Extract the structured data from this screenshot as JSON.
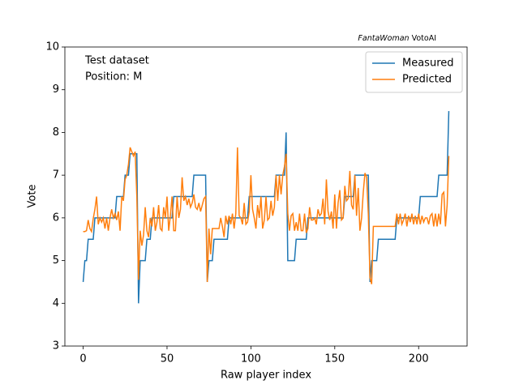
{
  "chart_data": {
    "type": "line",
    "source": {
      "italic": "FantaWoman",
      "text": "VotoAI"
    },
    "annotations": [
      "Test dataset",
      "Position: M"
    ],
    "xlabel": "Raw player index",
    "ylabel": "Vote",
    "xlim": [
      -10.9,
      228.9
    ],
    "xticks": [
      0,
      50,
      100,
      150,
      200
    ],
    "ylim": [
      3,
      10
    ],
    "yticks": [
      3,
      4,
      5,
      6,
      7,
      8,
      9,
      10
    ],
    "legend": "upper right",
    "grid": false,
    "x": [
      0,
      1,
      2,
      3,
      4,
      5,
      6,
      7,
      8,
      9,
      10,
      11,
      12,
      13,
      14,
      15,
      16,
      17,
      18,
      19,
      20,
      21,
      22,
      23,
      24,
      25,
      26,
      27,
      28,
      29,
      30,
      31,
      32,
      33,
      34,
      35,
      36,
      37,
      38,
      39,
      40,
      41,
      42,
      43,
      44,
      45,
      46,
      47,
      48,
      49,
      50,
      51,
      52,
      53,
      54,
      55,
      56,
      57,
      58,
      59,
      60,
      61,
      62,
      63,
      64,
      65,
      66,
      67,
      68,
      69,
      70,
      71,
      72,
      73,
      74,
      75,
      76,
      77,
      78,
      79,
      80,
      81,
      82,
      83,
      84,
      85,
      86,
      87,
      88,
      89,
      90,
      91,
      92,
      93,
      94,
      95,
      96,
      97,
      98,
      99,
      100,
      101,
      102,
      103,
      104,
      105,
      106,
      107,
      108,
      109,
      110,
      111,
      112,
      113,
      114,
      115,
      116,
      117,
      118,
      119,
      120,
      121,
      122,
      123,
      124,
      125,
      126,
      127,
      128,
      129,
      130,
      131,
      132,
      133,
      134,
      135,
      136,
      137,
      138,
      139,
      140,
      141,
      142,
      143,
      144,
      145,
      146,
      147,
      148,
      149,
      150,
      151,
      152,
      153,
      154,
      155,
      156,
      157,
      158,
      159,
      160,
      161,
      162,
      163,
      164,
      165,
      166,
      167,
      168,
      169,
      170,
      171,
      172,
      173,
      174,
      175,
      176,
      177,
      178,
      179,
      180,
      181,
      182,
      183,
      184,
      185,
      186,
      187,
      188,
      189,
      190,
      191,
      192,
      193,
      194,
      195,
      196,
      197,
      198,
      199,
      200,
      201,
      202,
      203,
      204,
      205,
      206,
      207,
      208,
      209,
      210,
      211,
      212,
      213,
      214,
      215,
      216,
      217,
      218
    ],
    "series": [
      {
        "name": "Measured",
        "color": "#1f77b4",
        "values": [
          4.5,
          5,
          5,
          5.5,
          5.5,
          5.5,
          5.5,
          6,
          6,
          6,
          6,
          6,
          6,
          6,
          6,
          6,
          6,
          6,
          6,
          6,
          6.5,
          6.5,
          6.5,
          6.5,
          6.5,
          7,
          7,
          7,
          7.5,
          7.5,
          7.5,
          7.5,
          7.5,
          4,
          5,
          5,
          5,
          5,
          5.5,
          5.5,
          5.5,
          6,
          6,
          6,
          6,
          6,
          6,
          6,
          6,
          6,
          6,
          6,
          6,
          6,
          6.5,
          6.5,
          6.5,
          6.5,
          6.5,
          6.5,
          6.5,
          6.5,
          6.5,
          6.5,
          6.5,
          6.5,
          7,
          7,
          7,
          7,
          7,
          7,
          7,
          7,
          4.5,
          5,
          5,
          5,
          5.5,
          5.5,
          5.5,
          5.5,
          5.5,
          5.5,
          5.5,
          5.5,
          5.5,
          6,
          6,
          6,
          6,
          6,
          6,
          6,
          6,
          6,
          6,
          6,
          6,
          6.5,
          6.5,
          6.5,
          6.5,
          6.5,
          6.5,
          6.5,
          6.5,
          6.5,
          6.5,
          6.5,
          6.5,
          6.5,
          6.5,
          6.5,
          6.5,
          7,
          7,
          7,
          7,
          7,
          7,
          8,
          5,
          5,
          5,
          5,
          5,
          5.5,
          5.5,
          5.5,
          5.5,
          5.5,
          5.5,
          5.5,
          6,
          6,
          6,
          6,
          6,
          6,
          6,
          6,
          6,
          6,
          6,
          6,
          6,
          6,
          6,
          6,
          6,
          6,
          6,
          6,
          6,
          6,
          6.5,
          6.5,
          6.5,
          6.5,
          6.5,
          6.5,
          7,
          7,
          7,
          7,
          7,
          7,
          7,
          7,
          7,
          4.5,
          5,
          5,
          5,
          5,
          5.5,
          5.5,
          5.5,
          5.5,
          5.5,
          5.5,
          5.5,
          5.5,
          5.5,
          5.5,
          5.5,
          6,
          6,
          6,
          6,
          6,
          6,
          6,
          6,
          6,
          6,
          6,
          6,
          6,
          6,
          6.5,
          6.5,
          6.5,
          6.5,
          6.5,
          6.5,
          6.5,
          6.5,
          6.5,
          6.5,
          6.5,
          7,
          7,
          7,
          7,
          7,
          7,
          8.5
        ]
      },
      {
        "name": "Predicted",
        "color": "#ff7f0e",
        "values": [
          5.68,
          5.68,
          5.7,
          5.95,
          5.75,
          5.68,
          5.98,
          6.2,
          6.5,
          5.85,
          6,
          5.9,
          6,
          5.75,
          6,
          5.7,
          6,
          6.2,
          6,
          6.1,
          5.95,
          6.15,
          5.7,
          6.5,
          6.4,
          6.9,
          7,
          7.25,
          7.65,
          7.55,
          7.45,
          7.55,
          6.5,
          4.55,
          5.7,
          5.35,
          5.6,
          6.25,
          5.7,
          5.55,
          6,
          5.8,
          6.25,
          5.7,
          5.9,
          6.3,
          5.75,
          5.7,
          6.25,
          6,
          6.5,
          5.7,
          6.05,
          6.5,
          5.7,
          5.7,
          6.5,
          6,
          6.2,
          6.95,
          6.4,
          6.5,
          6.3,
          6.45,
          6.25,
          6.35,
          6.55,
          6.25,
          6.2,
          6.35,
          6.15,
          6.3,
          6.45,
          6.5,
          4.5,
          5.75,
          5.15,
          5.75,
          5.75,
          5.75,
          5.75,
          5.75,
          6,
          5.8,
          5.55,
          6.05,
          5.85,
          6.05,
          5.85,
          6.1,
          5.75,
          6.1,
          7.65,
          6.05,
          6,
          5.85,
          6.35,
          5.85,
          5.9,
          6.15,
          7,
          6.2,
          6,
          5.75,
          6.3,
          6,
          6.5,
          5.75,
          5.95,
          6.5,
          5.95,
          6,
          6.4,
          6.05,
          6.25,
          7,
          6.4,
          7,
          6.55,
          7,
          7.2,
          7.5,
          6.1,
          5.7,
          6.05,
          6.1,
          5.7,
          5.9,
          5.7,
          6.1,
          5.7,
          5.7,
          6.1,
          5.65,
          5.75,
          6.25,
          5.95,
          5.95,
          6,
          5.85,
          6.2,
          6.05,
          6.1,
          6.45,
          5.85,
          6.9,
          6.15,
          5.95,
          6.15,
          5.75,
          6.55,
          5.75,
          6.35,
          6.65,
          5.95,
          6,
          6.75,
          6.4,
          6.45,
          7.1,
          6.3,
          6.2,
          7,
          6.05,
          6.7,
          5.7,
          6,
          6.6,
          7.05,
          6.95,
          6.1,
          4.6,
          4.45,
          5.8,
          5.8,
          5.8,
          5.8,
          5.8,
          5.8,
          5.8,
          5.8,
          5.8,
          5.8,
          5.8,
          5.8,
          5.8,
          5.8,
          6.1,
          5.85,
          6.1,
          5.85,
          5.95,
          6.1,
          5.8,
          6.05,
          5.9,
          6.1,
          5.85,
          6.05,
          5.85,
          6.1,
          5.85,
          6.05,
          5.9,
          6,
          6,
          5.85,
          6.05,
          6.1,
          5.8,
          6.1,
          5.8,
          6.1,
          5.85,
          6.55,
          6.6,
          5.8,
          6.3,
          7.45
        ]
      }
    ]
  }
}
